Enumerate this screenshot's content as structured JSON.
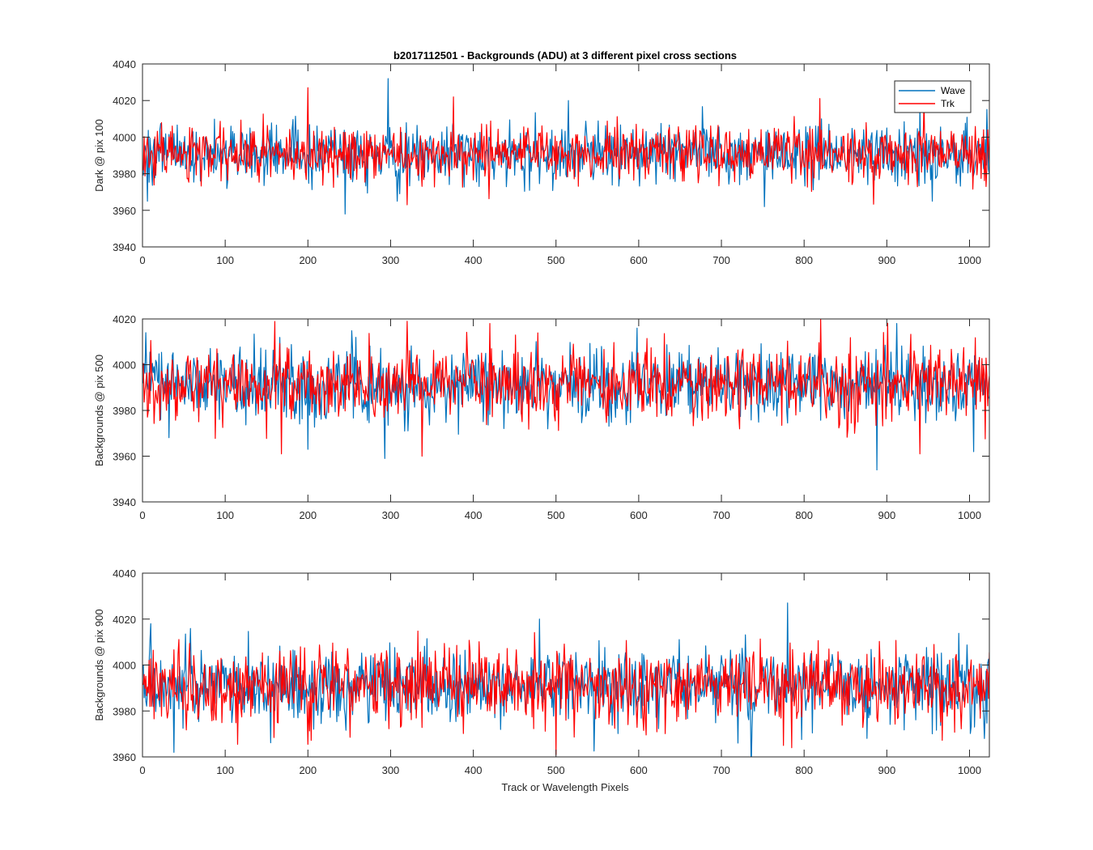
{
  "chart_data": {
    "type": "line",
    "title": "b2017112501 - Backgrounds (ADU) at 3 different pixel cross sections",
    "xlabel": "Track or Wavelength Pixels",
    "xlim": [
      0,
      1024
    ],
    "xticks": [
      0,
      100,
      200,
      300,
      400,
      500,
      600,
      700,
      800,
      900,
      1000
    ],
    "legend": {
      "placement": "top-right",
      "entries": [
        "Wave",
        "Trk"
      ]
    },
    "colors": {
      "Wave": "#0072BD",
      "Trk": "#FF0000"
    },
    "grid": false,
    "note_values": "Each series has 1024 samples (x = 1..1024). Values are pseudo-random noise reproduced from summary statistics read off the plot (mean, spread, and notable peaks/dips at given x).",
    "panels": [
      {
        "ylabel": "Dark @ pix 100",
        "ylim": [
          3940,
          4040
        ],
        "yticks": [
          3940,
          3960,
          3980,
          4000,
          4020,
          4040
        ],
        "series": [
          {
            "name": "Wave",
            "mean": 3991,
            "spread": 8,
            "seed": 101,
            "spikes": [
              [
                6,
                3965
              ],
              [
                130,
                4005
              ],
              [
                245,
                3958
              ],
              [
                297,
                4032
              ],
              [
                308,
                3965
              ],
              [
                515,
                4020
              ],
              [
                752,
                3962
              ],
              [
                940,
                4016
              ],
              [
                955,
                3965
              ]
            ]
          },
          {
            "name": "Trk",
            "mean": 3991,
            "spread": 7.5,
            "seed": 202,
            "spikes": [
              [
                200,
                4027
              ],
              [
                320,
                3963
              ],
              [
                376,
                4022
              ],
              [
                945,
                4020
              ],
              [
                1020,
                3973
              ]
            ]
          }
        ]
      },
      {
        "ylabel": "Backgrounds @ pix 500",
        "ylim": [
          3940,
          4020
        ],
        "yticks": [
          3940,
          3960,
          3980,
          4000,
          4020
        ],
        "series": [
          {
            "name": "Wave",
            "mean": 3991,
            "spread": 8,
            "seed": 303,
            "spikes": [
              [
                4,
                4014
              ],
              [
                200,
                3963
              ],
              [
                293,
                3959
              ],
              [
                598,
                4016
              ],
              [
                888,
                3954
              ],
              [
                912,
                4018
              ],
              [
                1005,
                3962
              ]
            ]
          },
          {
            "name": "Trk",
            "mean": 3991,
            "spread": 8,
            "seed": 404,
            "spikes": [
              [
                168,
                3961
              ],
              [
                320,
                4019
              ],
              [
                338,
                3960
              ],
              [
                420,
                4018
              ],
              [
                820,
                4020
              ],
              [
                940,
                3961
              ]
            ]
          }
        ]
      },
      {
        "ylabel": "Backgrounds @ pix 900",
        "ylim": [
          3960,
          4040
        ],
        "yticks": [
          3960,
          3980,
          4000,
          4020,
          4040
        ],
        "series": [
          {
            "name": "Wave",
            "mean": 3991,
            "spread": 8,
            "seed": 505,
            "spikes": [
              [
                10,
                4018
              ],
              [
                38,
                3962
              ],
              [
                480,
                4020
              ],
              [
                780,
                4027
              ],
              [
                1018,
                3968
              ]
            ]
          },
          {
            "name": "Trk",
            "mean": 3991,
            "spread": 8,
            "seed": 606,
            "spikes": [
              [
                500,
                3961
              ],
              [
                775,
                3965
              ],
              [
                785,
                3964
              ]
            ]
          }
        ]
      }
    ]
  }
}
